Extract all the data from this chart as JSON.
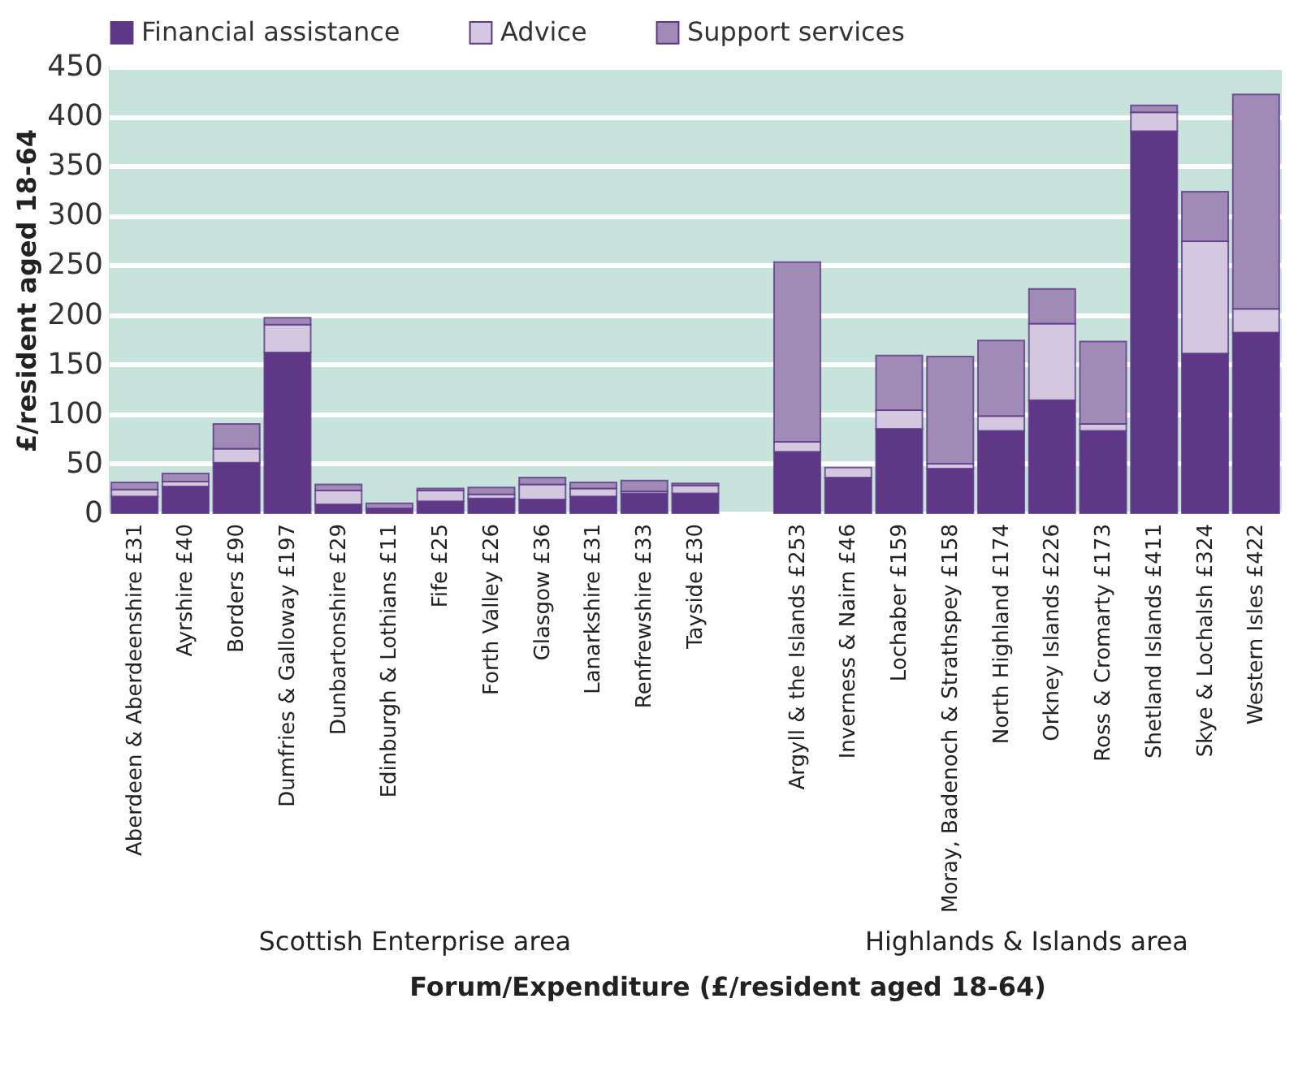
{
  "chart_data": {
    "type": "bar",
    "stacked": true,
    "xlabel": "Forum/Expenditure (£/resident aged 18-64)",
    "ylabel": "£/resident aged 18-64",
    "categories": [
      "Aberdeen & Aberdeenshire £31",
      "Ayrshire £40",
      "Borders £90",
      "Dumfries & Galloway £197",
      "Dunbartonshire £29",
      "Edinburgh & Lothians £11",
      "Fife £25",
      "Forth Valley £26",
      "Glasgow £36",
      "Lanarkshire £31",
      "Renfrewshire £33",
      "Tayside £30",
      null,
      "Argyll & the Islands £253",
      "Inverness & Nairn £46",
      "Lochaber £159",
      "Moray, Badenoch & Strathspey £158",
      "North Highland £174",
      "Orkney Islands £226",
      "Ross & Cromarty £173",
      "Shetland Islands £411",
      "Skye & Lochalsh £324",
      "Western Isles £422"
    ],
    "series": [
      {
        "name": "Financial assistance",
        "color": "#5e3787",
        "values": [
          17,
          27,
          51,
          162,
          9,
          5,
          12,
          15,
          14,
          17,
          20,
          20,
          null,
          62,
          36,
          85,
          45,
          83,
          114,
          83,
          385,
          161,
          182
        ]
      },
      {
        "name": "Advice",
        "color": "#d3c8e0",
        "values": [
          7,
          5,
          14,
          28,
          14,
          null,
          11,
          4,
          15,
          8,
          2,
          8,
          null,
          10,
          10,
          19,
          5,
          15,
          77,
          7,
          19,
          113,
          24
        ]
      },
      {
        "name": "Support services",
        "color": "#a08ab6",
        "values": [
          7,
          8,
          25,
          7,
          6,
          5,
          2,
          7,
          7,
          6,
          11,
          2,
          null,
          181,
          null,
          55,
          108,
          76,
          35,
          83,
          7,
          50,
          216
        ]
      }
    ],
    "ylim": [
      0,
      450
    ],
    "yticks": [
      0,
      50,
      100,
      150,
      200,
      250,
      300,
      350,
      400,
      450
    ],
    "grid": "y",
    "legend": "top",
    "annotations": [
      "Scottish Enterprise area",
      "Highlands & Islands area"
    ]
  }
}
